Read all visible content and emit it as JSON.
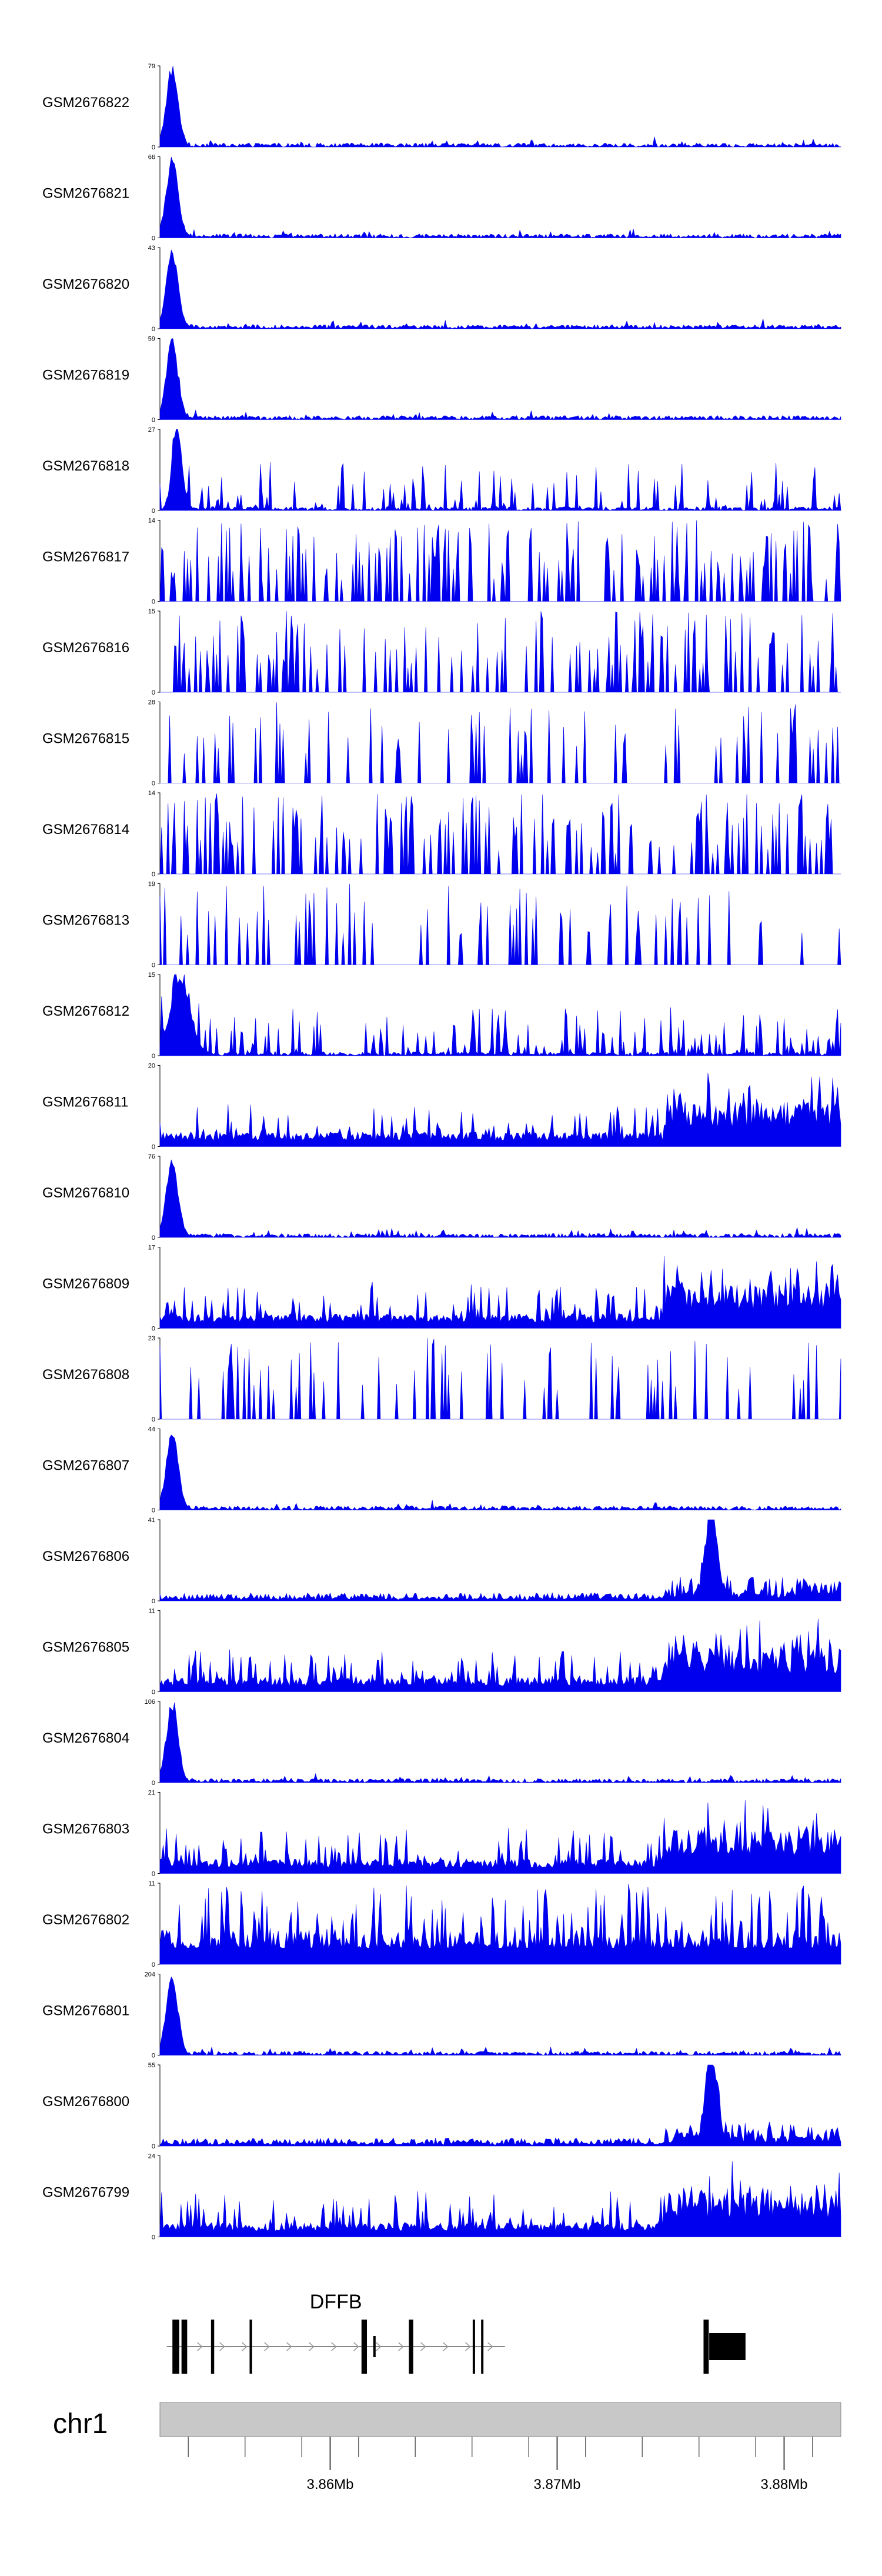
{
  "chart_data": {
    "type": "area",
    "region": {
      "chrom": "chr1",
      "start": 3852500,
      "end": 3882500
    },
    "x_ticks": [
      {
        "value": 3860000,
        "label": "3.86Mb"
      },
      {
        "value": 3870000,
        "label": "3.87Mb"
      },
      {
        "value": 3880000,
        "label": "3.88Mb"
      }
    ],
    "fill_color": "#0000ee",
    "series": [
      {
        "name": "GSM2676822",
        "ymax": "79",
        "profile": "peak",
        "noise": 0.06
      },
      {
        "name": "GSM2676821",
        "ymax": "66",
        "profile": "peak",
        "noise": 0.06
      },
      {
        "name": "GSM2676820",
        "ymax": "43",
        "profile": "peak",
        "noise": 0.08
      },
      {
        "name": "GSM2676819",
        "ymax": "59",
        "profile": "peak",
        "noise": 0.06
      },
      {
        "name": "GSM2676818",
        "ymax": "27",
        "profile": "sparse-peak",
        "noise": 0.3
      },
      {
        "name": "GSM2676817",
        "ymax": "14",
        "profile": "sparse",
        "noise": 0.55
      },
      {
        "name": "GSM2676816",
        "ymax": "15",
        "profile": "sparse",
        "noise": 0.5
      },
      {
        "name": "GSM2676815",
        "ymax": "28",
        "profile": "very-sparse",
        "noise": 0.4
      },
      {
        "name": "GSM2676814",
        "ymax": "14",
        "profile": "sparse",
        "noise": 0.55
      },
      {
        "name": "GSM2676813",
        "ymax": "19",
        "profile": "very-sparse",
        "noise": 0.45
      },
      {
        "name": "GSM2676812",
        "ymax": "15",
        "profile": "noisy-peak",
        "noise": 0.35
      },
      {
        "name": "GSM2676811",
        "ymax": "20",
        "profile": "right-heavy",
        "noise": 0.2
      },
      {
        "name": "GSM2676810",
        "ymax": "76",
        "profile": "peak",
        "noise": 0.05
      },
      {
        "name": "GSM2676809",
        "ymax": "17",
        "profile": "right-heavy",
        "noise": 0.22
      },
      {
        "name": "GSM2676808",
        "ymax": "23",
        "profile": "very-sparse",
        "noise": 0.45
      },
      {
        "name": "GSM2676807",
        "ymax": "44",
        "profile": "peak",
        "noise": 0.08
      },
      {
        "name": "GSM2676806",
        "ymax": "41",
        "profile": "right-peak",
        "noise": 0.12
      },
      {
        "name": "GSM2676805",
        "ymax": "11",
        "profile": "right-heavy",
        "noise": 0.28
      },
      {
        "name": "GSM2676804",
        "ymax": "106",
        "profile": "peak",
        "noise": 0.04
      },
      {
        "name": "GSM2676803",
        "ymax": "21",
        "profile": "right-heavy",
        "noise": 0.22
      },
      {
        "name": "GSM2676802",
        "ymax": "11",
        "profile": "noisy",
        "noise": 0.45
      },
      {
        "name": "GSM2676801",
        "ymax": "204",
        "profile": "peak",
        "noise": 0.02
      },
      {
        "name": "GSM2676800",
        "ymax": "55",
        "profile": "right-peak",
        "noise": 0.12
      },
      {
        "name": "GSM2676799",
        "ymax": "24",
        "profile": "right-heavy",
        "noise": 0.22
      }
    ],
    "gene": {
      "name": "DFFB",
      "strand": "+",
      "intron_span": [
        3852800,
        3867700
      ],
      "exons": [
        {
          "start": 3853050,
          "end": 3853350,
          "tall": true
        },
        {
          "start": 3853450,
          "end": 3853700,
          "tall": true
        },
        {
          "start": 3854750,
          "end": 3854890,
          "tall": true
        },
        {
          "start": 3856450,
          "end": 3856560,
          "tall": true
        },
        {
          "start": 3861380,
          "end": 3861620,
          "tall": true
        },
        {
          "start": 3861900,
          "end": 3861970,
          "tall": false
        },
        {
          "start": 3863470,
          "end": 3863660,
          "tall": true
        },
        {
          "start": 3866280,
          "end": 3866370,
          "tall": true
        },
        {
          "start": 3866650,
          "end": 3866720,
          "tall": true
        },
        {
          "start": 3876450,
          "end": 3876680,
          "tall": true
        },
        {
          "start": 3876700,
          "end": 3878300,
          "tall": true
        }
      ]
    }
  }
}
